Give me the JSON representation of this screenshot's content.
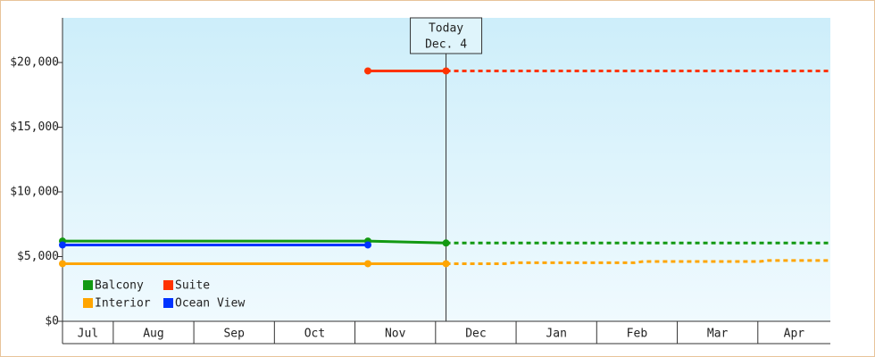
{
  "chart_data": {
    "type": "line",
    "categories": [
      "Jul",
      "Aug",
      "Sep",
      "Oct",
      "Nov",
      "Dec",
      "Jan",
      "Feb",
      "Mar",
      "Apr"
    ],
    "xlim": [
      0.37,
      9.9
    ],
    "ylim": [
      0,
      23450
    ],
    "yticks": [
      {
        "value": 0,
        "label": "$0"
      },
      {
        "value": 5000,
        "label": "$5,000"
      },
      {
        "value": 10000,
        "label": "$10,000"
      },
      {
        "value": 15000,
        "label": "$15,000"
      },
      {
        "value": 20000,
        "label": "$20,000"
      }
    ],
    "today": {
      "x": 5.13,
      "label": "Today",
      "date": "Dec. 4"
    },
    "series": [
      {
        "name": "Balcony",
        "color": "#129912",
        "x": [
          0.37,
          4.16,
          5.13
        ],
        "values": [
          6200,
          6200,
          6050
        ],
        "forecast_x": [
          5.13,
          9.9
        ],
        "forecast_values": [
          6050,
          6050
        ]
      },
      {
        "name": "Suite",
        "color": "#ff3300",
        "x": [
          4.16,
          5.13
        ],
        "values": [
          19350,
          19350
        ],
        "forecast_x": [
          5.13,
          9.9
        ],
        "forecast_values": [
          19350,
          19350
        ]
      },
      {
        "name": "Interior",
        "color": "#ffa500",
        "x": [
          0.37,
          4.16,
          5.13
        ],
        "values": [
          4450,
          4450,
          4450
        ],
        "forecast_x": [
          5.13,
          5.86,
          5.97,
          7.47,
          7.58,
          9.02,
          9.13,
          9.9
        ],
        "forecast_values": [
          4450,
          4450,
          4530,
          4530,
          4620,
          4620,
          4700,
          4700
        ]
      },
      {
        "name": "Ocean View",
        "color": "#0033ff",
        "x": [
          0.37,
          4.16
        ],
        "values": [
          5900,
          5900
        ],
        "forecast_x": [],
        "forecast_values": []
      }
    ]
  }
}
